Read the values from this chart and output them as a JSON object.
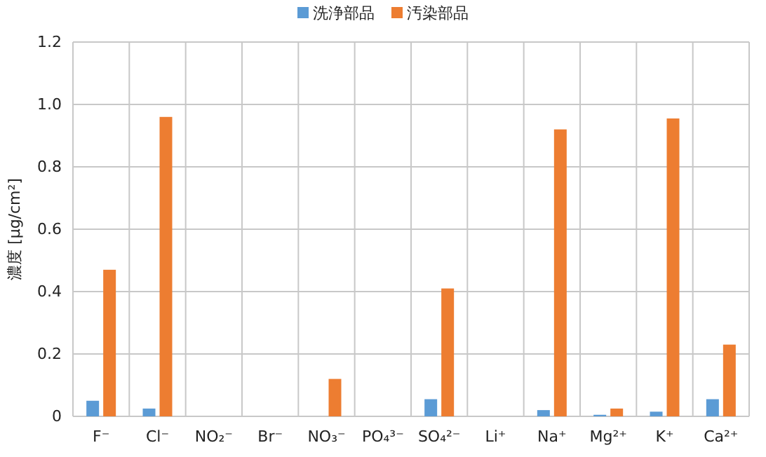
{
  "chart_data": {
    "type": "bar",
    "ylabel": "濃度 [μg/cm²]",
    "categories": [
      "F⁻",
      "Cl⁻",
      "NO₂⁻",
      "Br⁻",
      "NO₃⁻",
      "PO₄³⁻",
      "SO₄²⁻",
      "Li⁺",
      "Na⁺",
      "Mg²⁺",
      "K⁺",
      "Ca²⁺"
    ],
    "series": [
      {
        "name": "洗浄部品",
        "color": "#5b9bd5",
        "values": [
          0.05,
          0.025,
          0,
          0,
          0,
          0,
          0.055,
          0,
          0.02,
          0.005,
          0.015,
          0.055
        ]
      },
      {
        "name": "汚染部品",
        "color": "#ed7d31",
        "values": [
          0.47,
          0.96,
          0,
          0,
          0.12,
          0,
          0.41,
          0,
          0.92,
          0.025,
          0.955,
          0.23
        ]
      }
    ],
    "ylim": [
      0,
      1.2
    ],
    "yticks": [
      0,
      0.2,
      0.4,
      0.6,
      0.8,
      {
        "value": 1,
        "label": "1.0"
      },
      1.2
    ],
    "grid": true,
    "legend": "top"
  }
}
